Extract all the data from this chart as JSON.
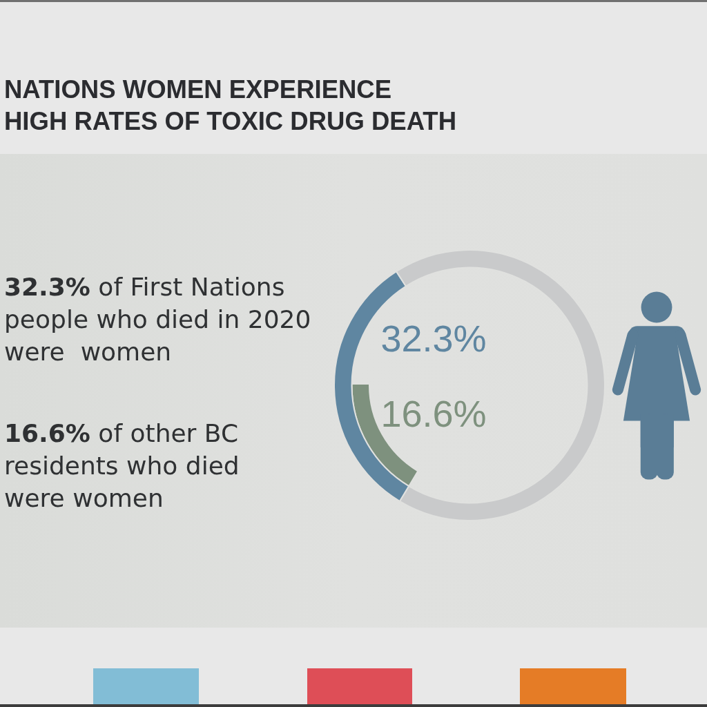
{
  "chart_data": {
    "type": "donut",
    "title": "NATIONS WOMEN EXPERIENCE\nHIGH RATES OF TOXIC DRUG DEATH",
    "categories": [
      null,
      null
    ],
    "series": [
      {
        "values": [
          32.3,
          67.7
        ],
        "colors": [
          "#5f86a1",
          "#c9cacb"
        ],
        "value_labels": [
          "32.3%",
          null
        ]
      },
      {
        "values": [
          16.6,
          null
        ],
        "colors": [
          "#7e917e",
          null
        ],
        "value_labels": [
          "16.6%",
          null
        ]
      }
    ],
    "annotations": [
      "32.3% of First Nations\npeople who died in 2020\nwere  women",
      "16.6% of other BC\nresidents who died\nwere women"
    ]
  }
}
